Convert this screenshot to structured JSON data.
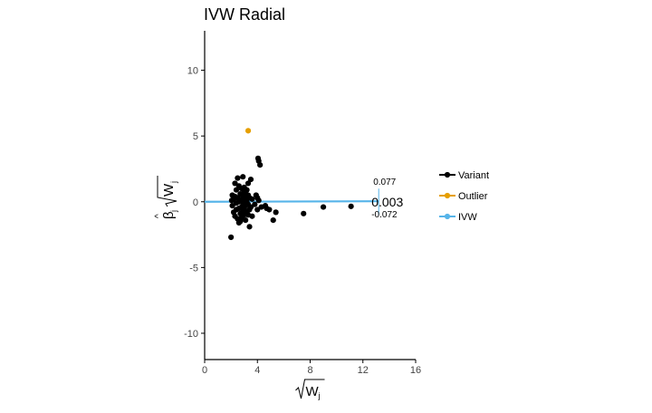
{
  "chart_data": {
    "type": "scatter",
    "title": "IVW Radial",
    "xlabel": "√W_j",
    "ylabel": "β̂_j √W_j",
    "xlim": [
      0,
      16
    ],
    "ylim": [
      -12,
      13
    ],
    "x_ticks": [
      0,
      4,
      8,
      12,
      16
    ],
    "y_ticks": [
      -10,
      -5,
      0,
      5,
      10
    ],
    "grid": false,
    "legend_position": "right",
    "legend": [
      {
        "label": "Variant",
        "color": "#000000"
      },
      {
        "label": "Outlier",
        "color": "#E69F00"
      },
      {
        "label": "IVW",
        "color": "#56B4E9"
      }
    ],
    "ivw": {
      "slope_label": "0.003",
      "upper_label": "0.077",
      "lower_label": "-0.072",
      "slope": 0.003,
      "x_end": 13.2
    },
    "series": [
      {
        "name": "Variant",
        "color": "#000000",
        "points": [
          [
            2.0,
            -2.7
          ],
          [
            2.1,
            0.5
          ],
          [
            2.1,
            -0.3
          ],
          [
            2.2,
            0.2
          ],
          [
            2.2,
            -0.8
          ],
          [
            2.3,
            1.4
          ],
          [
            2.3,
            -1.1
          ],
          [
            2.3,
            0.4
          ],
          [
            2.4,
            -0.1
          ],
          [
            2.4,
            0.9
          ],
          [
            2.5,
            -1.3
          ],
          [
            2.5,
            1.8
          ],
          [
            2.5,
            0.3
          ],
          [
            2.6,
            -0.5
          ],
          [
            2.6,
            1.2
          ],
          [
            2.6,
            -1.6
          ],
          [
            2.7,
            0.6
          ],
          [
            2.7,
            -0.9
          ],
          [
            2.7,
            0.1
          ],
          [
            2.8,
            1.0
          ],
          [
            2.8,
            -0.4
          ],
          [
            2.8,
            -1.2
          ],
          [
            2.9,
            0.4
          ],
          [
            2.9,
            1.9
          ],
          [
            2.9,
            -0.7
          ],
          [
            3.0,
            0.2
          ],
          [
            3.0,
            -1.0
          ],
          [
            3.0,
            1.1
          ],
          [
            3.1,
            0.6
          ],
          [
            3.1,
            -0.3
          ],
          [
            3.1,
            -1.4
          ],
          [
            3.2,
            0.9
          ],
          [
            3.2,
            0.0
          ],
          [
            3.2,
            -0.8
          ],
          [
            3.3,
            1.4
          ],
          [
            3.3,
            -0.2
          ],
          [
            3.3,
            0.5
          ],
          [
            3.4,
            -0.6
          ],
          [
            3.4,
            0.3
          ],
          [
            3.4,
            -1.9
          ],
          [
            3.5,
            1.7
          ],
          [
            3.5,
            -0.4
          ],
          [
            3.6,
            0.2
          ],
          [
            3.6,
            -1.1
          ],
          [
            3.8,
            -0.2
          ],
          [
            3.9,
            0.5
          ],
          [
            4.0,
            0.3
          ],
          [
            4.0,
            -0.6
          ],
          [
            4.05,
            3.3
          ],
          [
            4.1,
            0.1
          ],
          [
            4.1,
            3.1
          ],
          [
            4.2,
            2.8
          ],
          [
            4.3,
            -0.4
          ],
          [
            4.6,
            -0.3
          ],
          [
            4.7,
            -0.5
          ],
          [
            4.9,
            -0.6
          ],
          [
            5.2,
            -1.4
          ],
          [
            5.4,
            -0.8
          ],
          [
            7.5,
            -0.9
          ],
          [
            9.0,
            -0.4
          ],
          [
            11.1,
            -0.35
          ],
          [
            2.05,
            0.1
          ],
          [
            2.4,
            -0.6
          ],
          [
            2.9,
            -0.1
          ],
          [
            3.0,
            0.8
          ],
          [
            3.2,
            0.4
          ],
          [
            2.7,
            -1.5
          ],
          [
            3.3,
            -1.0
          ],
          [
            2.6,
            0.0
          ],
          [
            3.0,
            -0.5
          ]
        ]
      },
      {
        "name": "Outlier",
        "color": "#E69F00",
        "points": [
          [
            3.3,
            5.4
          ]
        ]
      }
    ]
  }
}
